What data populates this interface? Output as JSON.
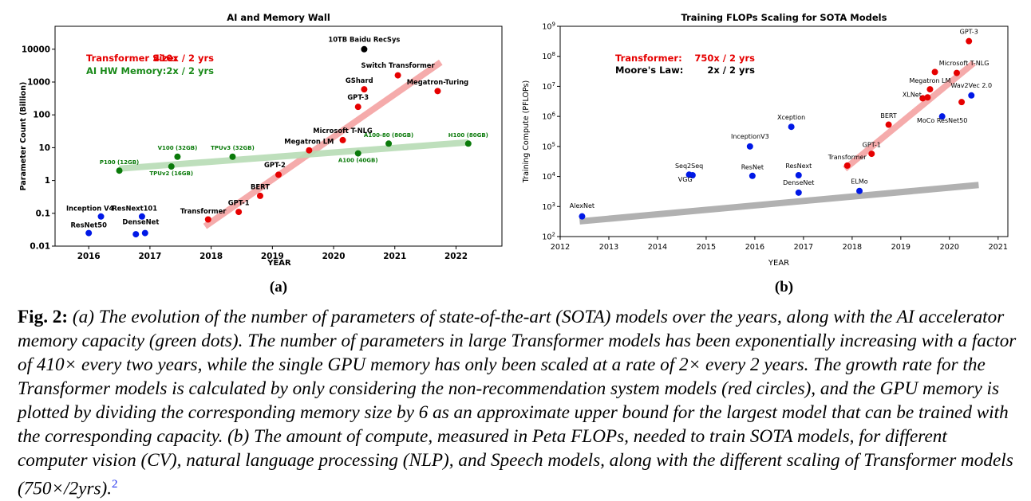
{
  "chart_data": [
    {
      "type": "scatter",
      "title": "AI and Memory Wall",
      "xlabel": "YEAR",
      "ylabel": "Parameter Count (Billion)",
      "yscale": "log",
      "xlim": [
        2015.45,
        2022.75
      ],
      "ylim": [
        0.01,
        50000
      ],
      "xticks": [
        "2016",
        "2017",
        "2018",
        "2019",
        "2020",
        "2021",
        "2022"
      ],
      "yticks": [
        "0.01",
        "0.1",
        "1",
        "10",
        "100",
        "1000",
        "10000"
      ],
      "panel_label": "(a)",
      "legend": [
        {
          "label": "Transformer Size:",
          "value": "410x / 2 yrs",
          "color": "#e60000"
        },
        {
          "label": "AI HW Memory:",
          "value": "2x / 2 yrs",
          "color": "#1a8a1a"
        }
      ],
      "trend_lines": [
        {
          "name": "Transformer trend",
          "x": [
            2017.9,
            2021.75
          ],
          "y": [
            0.04,
            4000
          ],
          "color": "#f4a3a3"
        },
        {
          "name": "Memory trend",
          "x": [
            2016.5,
            2022.2
          ],
          "y": [
            2.3,
            14.5
          ],
          "color": "#b8dcb5"
        }
      ],
      "series": [
        {
          "name": "CV / other models",
          "color": "#0018e6",
          "points": [
            {
              "label": "Inception V4",
              "x": 2016.2,
              "y": 0.08,
              "lx": -0.18,
              "ly": 0.12
            },
            {
              "label": "ResNet50",
              "x": 2016.0,
              "y": 0.025,
              "lx": 0.0,
              "ly": 0.037
            },
            {
              "label": "ResNext101",
              "x": 2016.87,
              "y": 0.08,
              "lx": -0.12,
              "ly": 0.12
            },
            {
              "label": "DenseNet",
              "x": 2016.92,
              "y": 0.025,
              "lx": -0.07,
              "ly": 0.046
            },
            {
              "label": "",
              "x": 2016.77,
              "y": 0.023,
              "lx": 0,
              "ly": 0
            }
          ]
        },
        {
          "name": "Recommendation system",
          "color": "#000000",
          "points": [
            {
              "label": "10TB Baidu RecSys",
              "x": 2020.5,
              "y": 10000,
              "lx": 0.0,
              "ly": 17000
            }
          ]
        },
        {
          "name": "Transformer models",
          "color": "#e60000",
          "points": [
            {
              "label": "Transformer",
              "x": 2017.95,
              "y": 0.065,
              "lx": -0.08,
              "ly": 0.1
            },
            {
              "label": "GPT-1",
              "x": 2018.45,
              "y": 0.11,
              "lx": 0.0,
              "ly": 0.18
            },
            {
              "label": "BERT",
              "x": 2018.8,
              "y": 0.34,
              "lx": 0.0,
              "ly": 0.55
            },
            {
              "label": "GPT-2",
              "x": 2019.1,
              "y": 1.5,
              "lx": -0.06,
              "ly": 2.5
            },
            {
              "label": "Megatron LM",
              "x": 2019.6,
              "y": 8.3,
              "lx": 0.0,
              "ly": 13
            },
            {
              "label": "Microsoft T-NLG",
              "x": 2020.15,
              "y": 17,
              "lx": 0.0,
              "ly": 28
            },
            {
              "label": "GPT-3",
              "x": 2020.4,
              "y": 175,
              "lx": 0.0,
              "ly": 290
            },
            {
              "label": "GShard",
              "x": 2020.5,
              "y": 600,
              "lx": -0.08,
              "ly": 950
            },
            {
              "label": "Switch Transformer",
              "x": 2021.05,
              "y": 1600,
              "lx": 0.0,
              "ly": 2700
            },
            {
              "label": "Megatron-Turing",
              "x": 2021.7,
              "y": 530,
              "lx": 0.0,
              "ly": 850
            }
          ]
        },
        {
          "name": "AI accelerator memory",
          "color": "#0a7a0a",
          "points": [
            {
              "label": "P100 (12GB)",
              "x": 2016.5,
              "y": 2.0,
              "lx": 0.0,
              "ly": 3.2
            },
            {
              "label": "V100 (32GB)",
              "x": 2017.45,
              "y": 5.3,
              "lx": 0.0,
              "ly": 8.7
            },
            {
              "label": "TPUv2 (16GB)",
              "x": 2017.35,
              "y": 2.67,
              "lx": 0.0,
              "ly": 1.45
            },
            {
              "label": "TPUv3 (32GB)",
              "x": 2018.35,
              "y": 5.3,
              "lx": 0.0,
              "ly": 8.7
            },
            {
              "label": "A100 (40GB)",
              "x": 2020.4,
              "y": 6.7,
              "lx": 0.0,
              "ly": 3.6
            },
            {
              "label": "A100-80 (80GB)",
              "x": 2020.9,
              "y": 13.3,
              "lx": 0.0,
              "ly": 21
            },
            {
              "label": "H100 (80GB)",
              "x": 2022.2,
              "y": 13.3,
              "lx": 0.0,
              "ly": 21
            }
          ]
        }
      ]
    },
    {
      "type": "scatter",
      "title": "Training FLOPs Scaling for SOTA Models",
      "xlabel": "YEAR",
      "ylabel": "Training Compute (PFLOPs)",
      "yscale": "log",
      "xlim": [
        2012.0,
        2021.2
      ],
      "ylim": [
        100,
        1000000000
      ],
      "xticks": [
        "2012",
        "2013",
        "2014",
        "2015",
        "2016",
        "2017",
        "2018",
        "2019",
        "2020",
        "2021"
      ],
      "yticks": [
        "10^2",
        "10^3",
        "10^4",
        "10^5",
        "10^6",
        "10^7",
        "10^8",
        "10^9"
      ],
      "panel_label": "(b)",
      "legend": [
        {
          "label": "Transformer:",
          "value": "750x / 2 yrs",
          "color": "#e60000"
        },
        {
          "label": "Moore's Law:",
          "value": "2x / 2 yrs",
          "color": "#000000"
        }
      ],
      "trend_lines": [
        {
          "name": "Transformer trend",
          "x": [
            2017.85,
            2020.5
          ],
          "y": [
            18000,
            60000000
          ],
          "color": "#f4a3a3"
        },
        {
          "name": "Moore's Law trend",
          "x": [
            2012.4,
            2020.6
          ],
          "y": [
            320,
            5200
          ],
          "color": "#a9a9a9"
        }
      ],
      "series": [
        {
          "name": "CV / other models",
          "color": "#0018e6",
          "points": [
            {
              "label": "AlexNet",
              "x": 2012.45,
              "y": 470,
              "lx": 0.0,
              "ly": 900
            },
            {
              "label": "Seq2Seq",
              "x": 2014.65,
              "y": 11500,
              "lx": 0.0,
              "ly": 19000
            },
            {
              "label": "VGG",
              "x": 2014.72,
              "y": 11000,
              "lx": -0.15,
              "ly": 6800
            },
            {
              "label": "InceptionV3",
              "x": 2015.9,
              "y": 100000,
              "lx": 0.0,
              "ly": 180000
            },
            {
              "label": "ResNet",
              "x": 2015.95,
              "y": 10500,
              "lx": 0.0,
              "ly": 17500
            },
            {
              "label": "Xception",
              "x": 2016.75,
              "y": 450000,
              "lx": 0.0,
              "ly": 800000
            },
            {
              "label": "ResNext",
              "x": 2016.9,
              "y": 11000,
              "lx": 0.0,
              "ly": 19000
            },
            {
              "label": "DenseNet",
              "x": 2016.9,
              "y": 2900,
              "lx": 0.0,
              "ly": 5300
            },
            {
              "label": "ELMo",
              "x": 2018.15,
              "y": 3300,
              "lx": 0.0,
              "ly": 5800
            },
            {
              "label": "MoCo ResNet50",
              "x": 2019.85,
              "y": 1000000,
              "lx": 0.0,
              "ly": 620000
            },
            {
              "label": "Wav2Vec 2.0",
              "x": 2020.45,
              "y": 5000000,
              "lx": 0.0,
              "ly": 9000000
            }
          ]
        },
        {
          "name": "Transformer models",
          "color": "#e60000",
          "points": [
            {
              "label": "Transformer",
              "x": 2017.9,
              "y": 23000,
              "lx": 0.0,
              "ly": 37000
            },
            {
              "label": "GPT-1",
              "x": 2018.4,
              "y": 57000,
              "lx": 0.0,
              "ly": 97000
            },
            {
              "label": "BERT",
              "x": 2018.75,
              "y": 530000,
              "lx": 0.0,
              "ly": 900000
            },
            {
              "label": "XLNet",
              "x": 2019.45,
              "y": 4000000,
              "lx": -0.22,
              "ly": 4500000
            },
            {
              "label": "",
              "x": 2019.55,
              "y": 4300000,
              "lx": 0,
              "ly": 0
            },
            {
              "label": "Megatron LM",
              "x": 2019.6,
              "y": 8000000,
              "lx": 0.0,
              "ly": 13000000
            },
            {
              "label": "",
              "x": 2019.7,
              "y": 30000000,
              "lx": 0,
              "ly": 0
            },
            {
              "label": "Microsoft T-NLG",
              "x": 2020.15,
              "y": 28000000,
              "lx": 0.15,
              "ly": 50000000
            },
            {
              "label": "",
              "x": 2020.25,
              "y": 3000000,
              "lx": 0,
              "ly": 0
            },
            {
              "label": "GPT-3",
              "x": 2020.4,
              "y": 320000000,
              "lx": 0.0,
              "ly": 560000000
            }
          ]
        }
      ]
    }
  ],
  "caption": {
    "fig_label": "Fig. 2:",
    "text": "(a) The evolution of the number of parameters of state-of-the-art (SOTA) models over the years, along with the AI accelerator memory capacity (green dots). The number of parameters in large Transformer models has been exponentially increasing with a factor of 410× every two years, while the single GPU memory has only been scaled at a rate of 2× every 2 years. The growth rate for the Transformer models is calculated by only considering the non-recommendation system models (red circles), and the GPU memory is plotted by dividing the corresponding memory size by 6 as an approximate upper bound for the largest model that can be trained with the corresponding capacity. (b) The amount of compute, measured in Peta FLOPs, needed to train SOTA models, for different computer vision (CV), natural language processing (NLP), and Speech models, along with the different scaling of Transformer models (750×/2yrs).",
    "footnote": "2"
  }
}
